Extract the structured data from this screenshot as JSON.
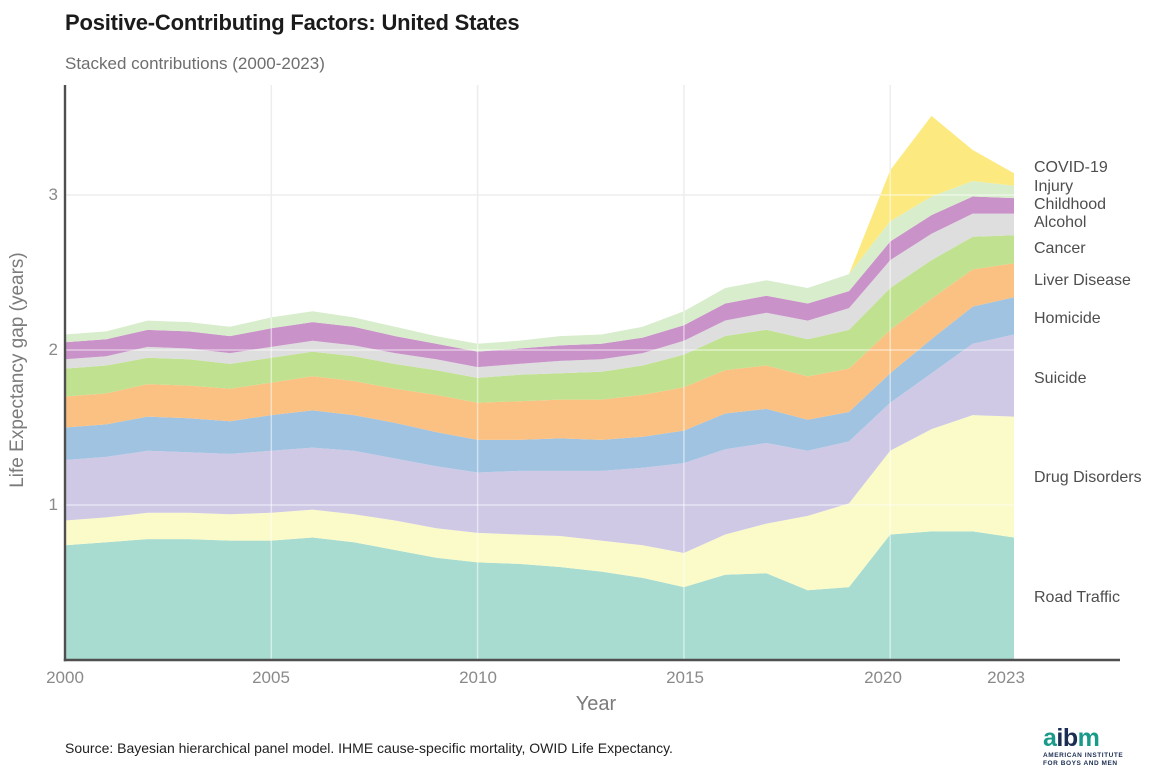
{
  "header": {
    "title": "Positive-Contributing Factors: United States",
    "subtitle": "Stacked contributions (2000-2023)"
  },
  "chart_data": {
    "type": "area",
    "stacked": true,
    "title": "Positive-Contributing Factors: United States",
    "subtitle": "Stacked contributions (2000-2023)",
    "xlabel": "Year",
    "ylabel": "Life Expectancy gap (years)",
    "xlim": [
      2000,
      2023
    ],
    "ylim": [
      0,
      3.71
    ],
    "grid": true,
    "legend_position": "right",
    "xticks": [
      2000,
      2005,
      2010,
      2015,
      2020,
      2023
    ],
    "yticks": [
      1,
      2,
      3
    ],
    "x": [
      2000,
      2001,
      2002,
      2003,
      2004,
      2005,
      2006,
      2007,
      2008,
      2009,
      2010,
      2011,
      2012,
      2013,
      2014,
      2015,
      2016,
      2017,
      2018,
      2019,
      2020,
      2021,
      2022,
      2023
    ],
    "series": [
      {
        "name": "Road Traffic",
        "color": "#a8dcd1",
        "values": [
          0.74,
          0.76,
          0.78,
          0.78,
          0.77,
          0.77,
          0.79,
          0.76,
          0.71,
          0.66,
          0.63,
          0.62,
          0.6,
          0.57,
          0.53,
          0.47,
          0.55,
          0.56,
          0.45,
          0.47,
          0.81,
          0.83,
          0.83,
          0.79
        ]
      },
      {
        "name": "Drug Disorders",
        "color": "#fbfbc9",
        "values": [
          0.16,
          0.16,
          0.17,
          0.17,
          0.17,
          0.18,
          0.18,
          0.18,
          0.19,
          0.19,
          0.19,
          0.19,
          0.2,
          0.2,
          0.21,
          0.22,
          0.26,
          0.32,
          0.48,
          0.54,
          0.54,
          0.66,
          0.75,
          0.78
        ]
      },
      {
        "name": "Suicide",
        "color": "#cfc9e6",
        "values": [
          0.39,
          0.39,
          0.4,
          0.39,
          0.39,
          0.4,
          0.4,
          0.41,
          0.4,
          0.4,
          0.39,
          0.41,
          0.42,
          0.45,
          0.5,
          0.58,
          0.55,
          0.52,
          0.42,
          0.4,
          0.31,
          0.36,
          0.46,
          0.53
        ]
      },
      {
        "name": "Homicide",
        "color": "#9fc3e0",
        "values": [
          0.21,
          0.21,
          0.22,
          0.22,
          0.21,
          0.23,
          0.24,
          0.23,
          0.23,
          0.22,
          0.21,
          0.2,
          0.21,
          0.2,
          0.2,
          0.21,
          0.23,
          0.22,
          0.2,
          0.19,
          0.19,
          0.22,
          0.24,
          0.24
        ]
      },
      {
        "name": "Liver Disease",
        "color": "#fac183",
        "values": [
          0.2,
          0.2,
          0.21,
          0.21,
          0.21,
          0.21,
          0.22,
          0.22,
          0.22,
          0.24,
          0.24,
          0.25,
          0.25,
          0.26,
          0.27,
          0.28,
          0.28,
          0.28,
          0.28,
          0.28,
          0.28,
          0.26,
          0.24,
          0.22
        ]
      },
      {
        "name": "Cancer",
        "color": "#c0e290",
        "values": [
          0.18,
          0.18,
          0.17,
          0.17,
          0.16,
          0.16,
          0.16,
          0.16,
          0.16,
          0.16,
          0.16,
          0.17,
          0.17,
          0.18,
          0.19,
          0.21,
          0.22,
          0.23,
          0.24,
          0.25,
          0.27,
          0.25,
          0.21,
          0.18
        ]
      },
      {
        "name": "Alcohol",
        "color": "#dedede",
        "values": [
          0.06,
          0.06,
          0.07,
          0.07,
          0.07,
          0.07,
          0.07,
          0.07,
          0.07,
          0.07,
          0.07,
          0.07,
          0.08,
          0.08,
          0.08,
          0.09,
          0.1,
          0.11,
          0.12,
          0.14,
          0.18,
          0.17,
          0.15,
          0.14
        ]
      },
      {
        "name": "Childhood",
        "color": "#c992c9",
        "values": [
          0.11,
          0.11,
          0.11,
          0.11,
          0.11,
          0.12,
          0.12,
          0.12,
          0.11,
          0.1,
          0.1,
          0.1,
          0.1,
          0.1,
          0.1,
          0.1,
          0.11,
          0.11,
          0.11,
          0.11,
          0.12,
          0.12,
          0.11,
          0.1
        ]
      },
      {
        "name": "Injury",
        "color": "#d8edcc",
        "values": [
          0.05,
          0.05,
          0.06,
          0.06,
          0.06,
          0.07,
          0.07,
          0.06,
          0.06,
          0.05,
          0.05,
          0.05,
          0.06,
          0.06,
          0.07,
          0.09,
          0.1,
          0.1,
          0.1,
          0.11,
          0.13,
          0.12,
          0.1,
          0.08
        ]
      },
      {
        "name": "COVID-19",
        "color": "#fcea80",
        "values": [
          0,
          0,
          0,
          0,
          0,
          0,
          0,
          0,
          0,
          0,
          0,
          0,
          0,
          0,
          0,
          0,
          0,
          0,
          0,
          0,
          0.33,
          0.52,
          0.2,
          0.08
        ]
      }
    ],
    "colors": {
      "grid_under": "#ededed",
      "grid_over": "rgba(255,255,255,0.5)",
      "axis": "#4f4f4f"
    }
  },
  "footer": {
    "source": "Source: Bayesian hierarchical panel model. IHME cause-specific mortality, OWID Life Expectancy.",
    "logo": {
      "letters": [
        "a",
        "i",
        "b",
        "m"
      ],
      "letter_colors": [
        "#1a9a8a",
        "#1b2d52",
        "#1b2d52",
        "#1a9a8a"
      ],
      "line1": "AMERICAN INSTITUTE",
      "line2": "FOR BOYS AND MEN",
      "text_color": "#1b2d52"
    }
  }
}
